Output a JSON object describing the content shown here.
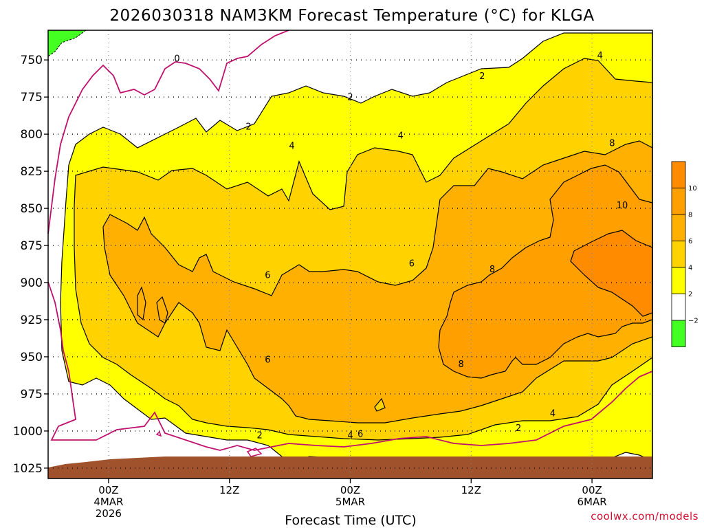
{
  "chart_data": {
    "type": "heatmap",
    "title": "2026030318 NAM3KM Forecast Temperature (°C) for KLGA",
    "xlabel": "Forecast Time (UTC)",
    "ylabel": "",
    "x_ticks": [
      {
        "hour": 6,
        "lines": [
          "00Z",
          "4MAR",
          "2026"
        ]
      },
      {
        "hour": 18,
        "lines": [
          "12Z"
        ]
      },
      {
        "hour": 30,
        "lines": [
          "00Z",
          "5MAR"
        ]
      },
      {
        "hour": 42,
        "lines": [
          "12Z"
        ]
      },
      {
        "hour": 54,
        "lines": [
          "00Z",
          "6MAR"
        ]
      }
    ],
    "xlim_hours": [
      0,
      60
    ],
    "y_ticks": [
      750,
      775,
      800,
      825,
      850,
      875,
      900,
      925,
      950,
      975,
      1000,
      1025
    ],
    "ylim_hpa": [
      730,
      1032
    ],
    "contour_levels": [
      -2,
      0,
      2,
      4,
      6,
      8,
      10
    ],
    "contour_labels": [
      {
        "label": "0",
        "hour": 12.8,
        "hpa": 751
      },
      {
        "label": "2",
        "hour": 30.0,
        "hpa": 777
      },
      {
        "label": "2",
        "hour": 19.9,
        "hpa": 797
      },
      {
        "label": "2",
        "hour": 43.1,
        "hpa": 763
      },
      {
        "label": "4",
        "hour": 54.8,
        "hpa": 749
      },
      {
        "label": "4",
        "hour": 35.0,
        "hpa": 803
      },
      {
        "label": "4",
        "hour": 24.2,
        "hpa": 810
      },
      {
        "label": "8",
        "hour": 56.0,
        "hpa": 808
      },
      {
        "label": "10",
        "hour": 57.0,
        "hpa": 850
      },
      {
        "label": "6",
        "hour": 36.1,
        "hpa": 889
      },
      {
        "label": "8",
        "hour": 44.1,
        "hpa": 893
      },
      {
        "label": "6",
        "hour": 21.8,
        "hpa": 897
      },
      {
        "label": "6",
        "hour": 21.8,
        "hpa": 954
      },
      {
        "label": "8",
        "hour": 41.0,
        "hpa": 957
      },
      {
        "label": "4",
        "hour": 50.1,
        "hpa": 990
      },
      {
        "label": "2",
        "hour": 46.7,
        "hpa": 1000
      },
      {
        "label": "2",
        "hour": 21.0,
        "hpa": 1005
      },
      {
        "label": "4",
        "hour": 30.0,
        "hpa": 1005
      },
      {
        "label": "6",
        "hour": 31.0,
        "hpa": 1004
      }
    ],
    "colorbar": {
      "labels": [
        "10",
        "8",
        "6",
        "4",
        "2",
        "−2"
      ],
      "colors": [
        "#ff8c00",
        "#ff9f00",
        "#ffb000",
        "#ffd200",
        "#ffff00",
        "#ffffff",
        "#44ff22"
      ]
    },
    "colors": {
      "ground": "#a0522d",
      "zero_line": "#c0106e",
      "lt_minus2": "#44ff22",
      "ge2": "#ffff00",
      "ge4": "#ffd200",
      "ge6": "#ffb000",
      "ge8": "#ff9f00",
      "ge10": "#ff8c00"
    },
    "grid": true
  },
  "credit": "coolwx.com/models"
}
